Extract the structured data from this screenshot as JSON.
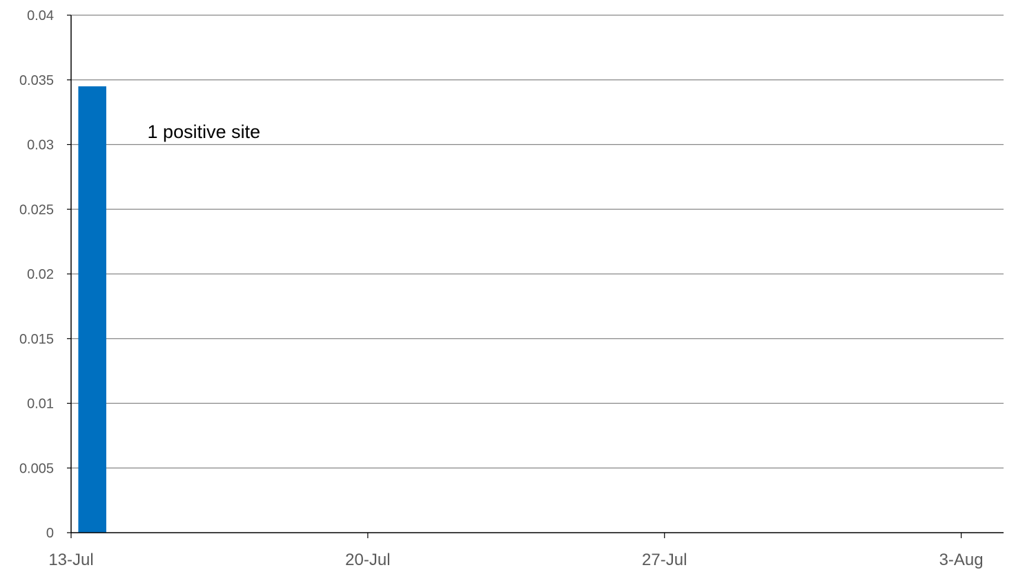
{
  "chart_data": {
    "type": "bar",
    "title": "",
    "xlabel": "",
    "ylabel": "",
    "ylim": [
      0,
      0.04
    ],
    "yticks": [
      "0",
      "0.005",
      "0.01",
      "0.015",
      "0.02",
      "0.025",
      "0.03",
      "0.035",
      "0.04"
    ],
    "xticks": [
      "13-Jul",
      "20-Jul",
      "27-Jul",
      "3-Aug"
    ],
    "x_range": [
      "13-Jul",
      "4-Aug"
    ],
    "grid": true,
    "series": [
      {
        "color": "#0070c0",
        "points": [
          {
            "x": "13-Jul",
            "y": 0.0345
          }
        ]
      }
    ],
    "annotations": [
      {
        "text": "1 positive site",
        "near": "13-Jul"
      }
    ]
  }
}
